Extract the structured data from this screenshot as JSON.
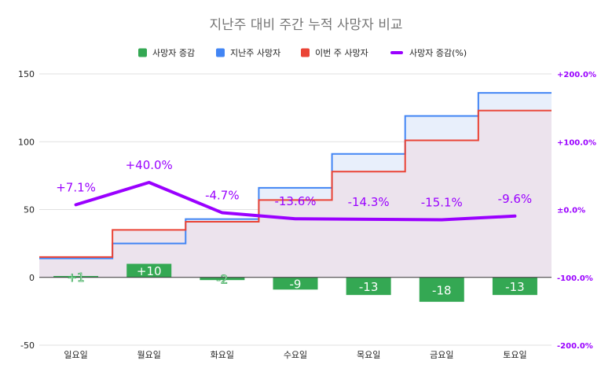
{
  "chart_data": {
    "type": "combo",
    "title": "지난주 대비 주간 누적 사망자 비교",
    "categories": [
      "일요일",
      "월요일",
      "화요일",
      "수요일",
      "목요일",
      "금요일",
      "토요일"
    ],
    "legend": [
      {
        "key": "diff",
        "label": "사망자 증감",
        "shape": "square"
      },
      {
        "key": "last_week",
        "label": "지난주 사망자",
        "shape": "square"
      },
      {
        "key": "this_week",
        "label": "이번 주 사망자",
        "shape": "square"
      },
      {
        "key": "pct",
        "label": "사망자 증감(%)",
        "shape": "line"
      }
    ],
    "series": [
      {
        "key": "last_week",
        "name": "지난주 사망자",
        "type": "stepped-area",
        "values": [
          14,
          25,
          43,
          66,
          91,
          119,
          136
        ]
      },
      {
        "key": "this_week",
        "name": "이번 주 사망자",
        "type": "stepped-area",
        "values": [
          15,
          35,
          41,
          57,
          78,
          101,
          123
        ]
      },
      {
        "key": "diff",
        "name": "사망자 증감",
        "type": "bar",
        "values": [
          1,
          10,
          -2,
          -9,
          -13,
          -18,
          -13
        ],
        "labels": [
          "+1",
          "+10",
          "-2",
          "-9",
          "-13",
          "-18",
          "-13"
        ]
      },
      {
        "key": "pct",
        "name": "사망자 증감(%)",
        "type": "line",
        "axis": "right",
        "values": [
          7.1,
          40.0,
          -4.7,
          -13.6,
          -14.3,
          -15.1,
          -9.6
        ],
        "labels": [
          "+7.1%",
          "+40.0%",
          "-4.7%",
          "-13.6%",
          "-14.3%",
          "-15.1%",
          "-9.6%"
        ]
      }
    ],
    "y_left": {
      "min": -50,
      "max": 150,
      "ticks": [
        150,
        100,
        50,
        0,
        -50
      ],
      "tick_labels": [
        "150",
        "100",
        "50",
        "0",
        "-50"
      ]
    },
    "y_right": {
      "min": -200,
      "max": 200,
      "ticks": [
        200,
        100,
        0,
        -100,
        -200
      ],
      "tick_labels": [
        "+200.0%",
        "+100.0%",
        "±0.0%",
        "-100.0%",
        "-200.0%"
      ]
    },
    "colors": {
      "diff": "#34a853",
      "last_week": "#4285f4",
      "this_week": "#ea4335",
      "pct": "#9a00ff",
      "last_week_fill": "#e8effb",
      "this_week_fill": "#ece0ea",
      "grid": "#e0e0e0",
      "axis": "#333333",
      "title": "#757575"
    }
  }
}
